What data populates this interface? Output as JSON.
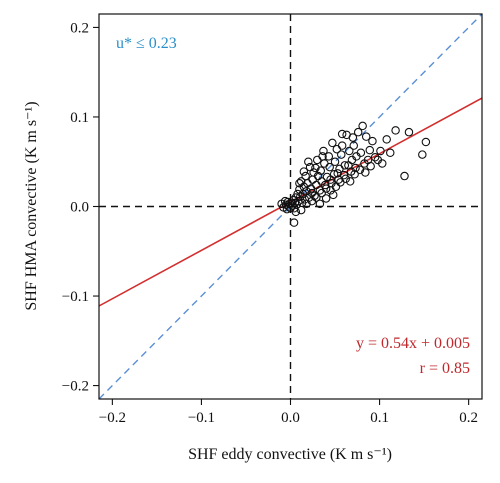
{
  "chart_data": {
    "type": "scatter",
    "xlabel": "SHF eddy convective (K m s⁻¹)",
    "ylabel": "SHF HMA convective (K m s⁻¹)",
    "xlim": [
      -0.215,
      0.215
    ],
    "ylim": [
      -0.215,
      0.215
    ],
    "xticks": [
      -0.2,
      -0.1,
      0.0,
      0.1,
      0.2
    ],
    "yticks": [
      -0.2,
      -0.1,
      0.0,
      0.1,
      0.2
    ],
    "xtick_labels": [
      "−0.2",
      "−0.1",
      "0.0",
      "0.1",
      "0.2"
    ],
    "ytick_labels": [
      "−0.2",
      "−0.1",
      "0.0",
      "0.1",
      "0.2"
    ],
    "grid": false,
    "annotation_condition": "u* ≤ 0.23",
    "annotation_fit": "y = 0.54x + 0.005",
    "annotation_r": "r = 0.85",
    "fit_line": {
      "slope": 0.54,
      "intercept": 0.005,
      "color": "#d32f2f"
    },
    "one_to_one_line": {
      "slope": 1,
      "intercept": 0,
      "color": "#5b8fd6"
    },
    "reference_lines": {
      "x": 0,
      "y": 0,
      "color": "#111111"
    },
    "points": [
      {
        "x": 0.152,
        "y": 0.072
      },
      {
        "x": 0.148,
        "y": 0.058
      },
      {
        "x": 0.133,
        "y": 0.083
      },
      {
        "x": 0.118,
        "y": 0.085
      },
      {
        "x": 0.108,
        "y": 0.075
      },
      {
        "x": 0.101,
        "y": 0.062
      },
      {
        "x": 0.098,
        "y": 0.052
      },
      {
        "x": 0.092,
        "y": 0.073
      },
      {
        "x": 0.089,
        "y": 0.063
      },
      {
        "x": 0.085,
        "y": 0.078
      },
      {
        "x": 0.083,
        "y": 0.048
      },
      {
        "x": 0.081,
        "y": 0.09
      },
      {
        "x": 0.079,
        "y": 0.06
      },
      {
        "x": 0.076,
        "y": 0.083
      },
      {
        "x": 0.074,
        "y": 0.056
      },
      {
        "x": 0.073,
        "y": 0.043
      },
      {
        "x": 0.071,
        "y": 0.068
      },
      {
        "x": 0.069,
        "y": 0.052
      },
      {
        "x": 0.068,
        "y": 0.039
      },
      {
        "x": 0.066,
        "y": 0.062
      },
      {
        "x": 0.063,
        "y": 0.08
      },
      {
        "x": 0.061,
        "y": 0.046
      },
      {
        "x": 0.06,
        "y": 0.035
      },
      {
        "x": 0.058,
        "y": 0.081
      },
      {
        "x": 0.057,
        "y": 0.058
      },
      {
        "x": 0.055,
        "y": 0.042
      },
      {
        "x": 0.054,
        "y": 0.03
      },
      {
        "x": 0.052,
        "y": 0.064
      },
      {
        "x": 0.05,
        "y": 0.05
      },
      {
        "x": 0.049,
        "y": 0.036
      },
      {
        "x": 0.047,
        "y": 0.071
      },
      {
        "x": 0.046,
        "y": 0.026
      },
      {
        "x": 0.044,
        "y": 0.044
      },
      {
        "x": 0.043,
        "y": 0.056
      },
      {
        "x": 0.041,
        "y": 0.033
      },
      {
        "x": 0.04,
        "y": 0.02
      },
      {
        "x": 0.038,
        "y": 0.048
      },
      {
        "x": 0.037,
        "y": 0.062
      },
      {
        "x": 0.035,
        "y": 0.028
      },
      {
        "x": 0.034,
        "y": 0.04
      },
      {
        "x": 0.033,
        "y": 0.018
      },
      {
        "x": 0.031,
        "y": 0.034
      },
      {
        "x": 0.03,
        "y": 0.052
      },
      {
        "x": 0.029,
        "y": 0.024
      },
      {
        "x": 0.027,
        "y": 0.012
      },
      {
        "x": 0.026,
        "y": 0.038
      },
      {
        "x": 0.025,
        "y": 0.03
      },
      {
        "x": 0.023,
        "y": 0.02
      },
      {
        "x": 0.022,
        "y": 0.044
      },
      {
        "x": 0.021,
        "y": 0.01
      },
      {
        "x": 0.019,
        "y": 0.026
      },
      {
        "x": 0.018,
        "y": 0.017
      },
      {
        "x": 0.017,
        "y": 0.034
      },
      {
        "x": 0.016,
        "y": 0.008
      },
      {
        "x": 0.015,
        "y": 0.022
      },
      {
        "x": 0.014,
        "y": 0.014
      },
      {
        "x": 0.013,
        "y": 0.004
      },
      {
        "x": 0.012,
        "y": 0.028
      },
      {
        "x": 0.011,
        "y": 0.011
      },
      {
        "x": 0.01,
        "y": 0.019
      },
      {
        "x": 0.009,
        "y": 0.006
      },
      {
        "x": 0.008,
        "y": 0.014
      },
      {
        "x": 0.007,
        "y": 0.002
      },
      {
        "x": 0.006,
        "y": 0.01
      },
      {
        "x": 0.005,
        "y": 0.004
      },
      {
        "x": 0.004,
        "y": -0.002
      },
      {
        "x": 0.003,
        "y": 0.007
      },
      {
        "x": 0.002,
        "y": 0.001
      },
      {
        "x": 0.001,
        "y": 0.004
      },
      {
        "x": 0.0,
        "y": -0.002
      },
      {
        "x": -0.001,
        "y": 0.003
      },
      {
        "x": -0.002,
        "y": 0.0
      },
      {
        "x": -0.003,
        "y": 0.005
      },
      {
        "x": -0.004,
        "y": -0.003
      },
      {
        "x": -0.005,
        "y": 0.002
      },
      {
        "x": -0.006,
        "y": 0.006
      },
      {
        "x": -0.008,
        "y": -0.001
      },
      {
        "x": -0.01,
        "y": 0.003
      },
      {
        "x": 0.006,
        "y": -0.006
      },
      {
        "x": 0.012,
        "y": -0.004
      },
      {
        "x": 0.018,
        "y": 0.003
      },
      {
        "x": 0.024,
        "y": 0.006
      },
      {
        "x": 0.029,
        "y": 0.01
      },
      {
        "x": 0.035,
        "y": 0.015
      },
      {
        "x": 0.04,
        "y": 0.009
      },
      {
        "x": 0.045,
        "y": 0.018
      },
      {
        "x": 0.051,
        "y": 0.022
      },
      {
        "x": 0.056,
        "y": 0.027
      },
      {
        "x": 0.062,
        "y": 0.031
      },
      {
        "x": 0.067,
        "y": 0.028
      },
      {
        "x": 0.072,
        "y": 0.036
      },
      {
        "x": 0.078,
        "y": 0.041
      },
      {
        "x": 0.084,
        "y": 0.038
      },
      {
        "x": 0.09,
        "y": 0.045
      },
      {
        "x": 0.095,
        "y": 0.055
      },
      {
        "x": 0.103,
        "y": 0.048
      },
      {
        "x": 0.112,
        "y": 0.06
      },
      {
        "x": 0.128,
        "y": 0.034
      },
      {
        "x": 0.004,
        "y": -0.018
      },
      {
        "x": 0.02,
        "y": 0.05
      },
      {
        "x": 0.028,
        "y": 0.043
      },
      {
        "x": 0.036,
        "y": 0.056
      },
      {
        "x": 0.015,
        "y": 0.039
      },
      {
        "x": 0.01,
        "y": 0.026
      },
      {
        "x": 0.033,
        "y": 0.003
      },
      {
        "x": 0.045,
        "y": 0.03
      },
      {
        "x": 0.053,
        "y": 0.037
      },
      {
        "x": 0.065,
        "y": 0.046
      },
      {
        "x": 0.058,
        "y": 0.068
      },
      {
        "x": 0.07,
        "y": 0.077
      },
      {
        "x": 0.087,
        "y": 0.052
      },
      {
        "x": 0.039,
        "y": 0.024
      },
      {
        "x": 0.024,
        "y": 0.015
      },
      {
        "x": 0.048,
        "y": 0.013
      }
    ]
  }
}
